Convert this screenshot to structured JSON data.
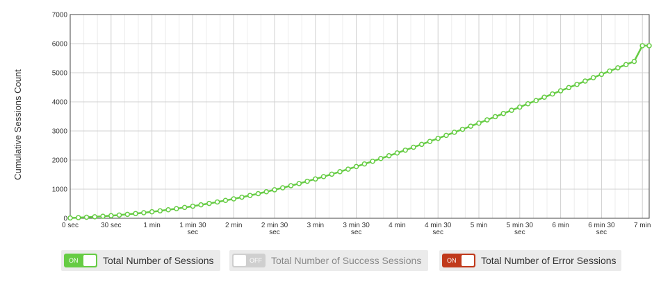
{
  "chart_data": {
    "type": "line",
    "title": "",
    "xlabel": "",
    "ylabel": "Cumulative Sessions Count",
    "ylim": [
      0,
      7000
    ],
    "xlim_seconds": [
      0,
      425
    ],
    "y_ticks": [
      0,
      1000,
      2000,
      3000,
      4000,
      5000,
      6000,
      7000
    ],
    "x_ticks": [
      {
        "seconds": 0,
        "label": [
          "0 sec"
        ]
      },
      {
        "seconds": 30,
        "label": [
          "30 sec"
        ]
      },
      {
        "seconds": 60,
        "label": [
          "1 min"
        ]
      },
      {
        "seconds": 90,
        "label": [
          "1 min 30",
          "sec"
        ]
      },
      {
        "seconds": 120,
        "label": [
          "2 min"
        ]
      },
      {
        "seconds": 150,
        "label": [
          "2 min 30",
          "sec"
        ]
      },
      {
        "seconds": 180,
        "label": [
          "3 min"
        ]
      },
      {
        "seconds": 210,
        "label": [
          "3 min 30",
          "sec"
        ]
      },
      {
        "seconds": 240,
        "label": [
          "4 min"
        ]
      },
      {
        "seconds": 270,
        "label": [
          "4 min 30",
          "sec"
        ]
      },
      {
        "seconds": 300,
        "label": [
          "5 min"
        ]
      },
      {
        "seconds": 330,
        "label": [
          "5 min 30",
          "sec"
        ]
      },
      {
        "seconds": 360,
        "label": [
          "6 min"
        ]
      },
      {
        "seconds": 390,
        "label": [
          "6 min 30",
          "sec"
        ]
      },
      {
        "seconds": 420,
        "label": [
          "7 min"
        ]
      }
    ],
    "grid": true,
    "series": [
      {
        "name": "Total Number of Sessions",
        "color": "#66cc44",
        "x_seconds": [
          0,
          6,
          12,
          18,
          24,
          30,
          36,
          42,
          48,
          54,
          60,
          66,
          72,
          78,
          84,
          90,
          96,
          102,
          108,
          114,
          120,
          126,
          132,
          138,
          144,
          150,
          156,
          162,
          168,
          174,
          180,
          186,
          192,
          198,
          204,
          210,
          216,
          222,
          228,
          234,
          240,
          246,
          252,
          258,
          264,
          270,
          276,
          282,
          288,
          294,
          300,
          306,
          312,
          318,
          324,
          330,
          336,
          342,
          348,
          354,
          360,
          366,
          372,
          378,
          384,
          390,
          396,
          402,
          408,
          414,
          420,
          425
        ],
        "values": [
          10,
          22,
          35,
          50,
          68,
          88,
          110,
          135,
          162,
          190,
          222,
          255,
          292,
          330,
          372,
          415,
          462,
          510,
          560,
          613,
          667,
          724,
          784,
          846,
          910,
          978,
          1047,
          1119,
          1194,
          1271,
          1350,
          1432,
          1515,
          1600,
          1688,
          1776,
          1866,
          1958,
          2053,
          2148,
          2244,
          2340,
          2440,
          2540,
          2640,
          2745,
          2848,
          2955,
          3058,
          3165,
          3268,
          3380,
          3490,
          3600,
          3710,
          3820,
          3935,
          4045,
          4160,
          4270,
          4380,
          4490,
          4600,
          4715,
          4830,
          4945,
          5060,
          5170,
          5280,
          5390,
          5930,
          5930
        ]
      }
    ]
  },
  "legend": [
    {
      "label": "Total Number of Sessions",
      "state": "ON",
      "color": "#66cc44"
    },
    {
      "label": "Total Number of Success Sessions",
      "state": "OFF",
      "color": "#cfcfcf"
    },
    {
      "label": "Total Number of Error Sessions",
      "state": "ON",
      "color": "#c0391b"
    }
  ]
}
